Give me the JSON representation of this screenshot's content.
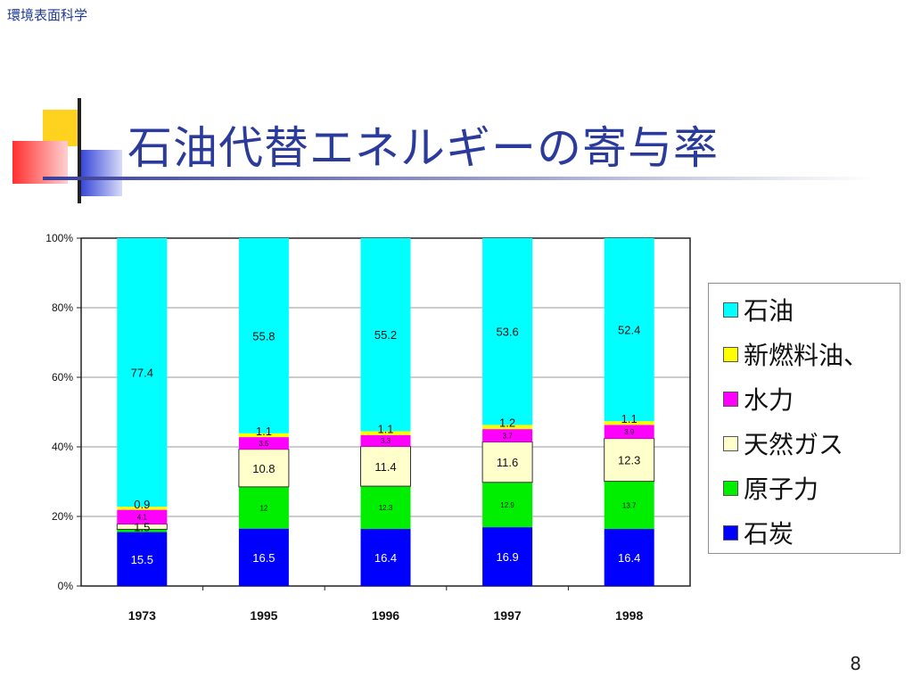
{
  "header": {
    "label": "環境表面科学"
  },
  "slide": {
    "title": "石油代替エネルギーの寄与率",
    "page_number": "8"
  },
  "colors": {
    "coal": "#0000ff",
    "nuclear": "#00ee00",
    "gas": "#ffffcc",
    "hydro": "#ff00ff",
    "new_fuel": "#ffff00",
    "oil": "#00ffff",
    "title": "#2b3b9c"
  },
  "chart_data": {
    "type": "bar",
    "stacked": true,
    "categories": [
      "1973",
      "1995",
      "1996",
      "1997",
      "1998"
    ],
    "y_ticks": [
      "0%",
      "20%",
      "40%",
      "60%",
      "80%",
      "100%"
    ],
    "ylim": [
      0,
      100
    ],
    "grid": true,
    "legend_position": "right",
    "series": [
      {
        "name": "石炭",
        "key": "coal",
        "values": [
          15.5,
          16.5,
          16.4,
          16.9,
          16.4
        ],
        "labels": [
          "15.5",
          "16.5",
          "16.4",
          "16.9",
          "16.4"
        ]
      },
      {
        "name": "原子力",
        "key": "nuclear",
        "values": [
          0.8,
          12,
          12.3,
          12.9,
          13.7
        ],
        "labels": [
          "",
          "12",
          "12.3",
          "12.9",
          "13.7"
        ]
      },
      {
        "name": "天然ガス",
        "key": "gas",
        "values": [
          1.5,
          10.8,
          11.4,
          11.6,
          12.3
        ],
        "labels": [
          "1.5",
          "10.8",
          "11.4",
          "11.6",
          "12.3"
        ]
      },
      {
        "name": "水力",
        "key": "hydro",
        "values": [
          4.1,
          3.5,
          3.3,
          3.7,
          3.9
        ],
        "labels": [
          "4.1",
          "3.5",
          "3.3",
          "3.7",
          "3.9"
        ]
      },
      {
        "name": "新燃料油、",
        "key": "new_fuel",
        "values": [
          0.9,
          1.1,
          1.1,
          1.2,
          1.1
        ],
        "labels": [
          "0.9",
          "1.1",
          "1.1",
          "1.2",
          "1.1"
        ]
      },
      {
        "name": "石油",
        "key": "oil",
        "values": [
          77.4,
          55.8,
          55.2,
          53.6,
          52.4
        ],
        "labels": [
          "77.4",
          "55.8",
          "55.2",
          "53.6",
          "52.4"
        ]
      }
    ]
  },
  "legend": {
    "items": [
      {
        "label": "石油",
        "key": "oil"
      },
      {
        "label": "新燃料油、",
        "key": "new_fuel"
      },
      {
        "label": "水力",
        "key": "hydro"
      },
      {
        "label": "天然ガス",
        "key": "gas"
      },
      {
        "label": "原子力",
        "key": "nuclear"
      },
      {
        "label": "石炭",
        "key": "coal"
      }
    ]
  }
}
